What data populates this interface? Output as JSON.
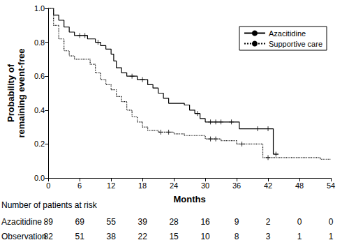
{
  "chart_data": {
    "type": "step",
    "x_label": "Months",
    "y_label": "Probability of\nremaining event-free",
    "xlim": [
      0,
      54
    ],
    "xticks": [
      0,
      6,
      12,
      18,
      24,
      30,
      36,
      42,
      48,
      54
    ],
    "ylim": [
      0,
      1
    ],
    "yticks": [
      {
        "value": 0,
        "label": "0.0"
      },
      0.2,
      0.4,
      0.6,
      0.8,
      {
        "value": 1,
        "label": "1.0"
      }
    ],
    "legend": "upper right",
    "grid": false,
    "series": [
      {
        "name": "Azacitidine",
        "color": "#000000",
        "line_style": "solid",
        "marker": "+",
        "x": [
          0,
          1,
          2,
          3,
          4,
          5,
          7.5,
          9,
          10,
          11,
          12,
          12.5,
          13,
          14,
          15,
          17,
          19,
          20,
          21,
          22,
          23,
          26,
          27,
          28,
          29,
          30,
          36.5,
          43,
          44
        ],
        "values": [
          1.0,
          0.96,
          0.93,
          0.89,
          0.86,
          0.84,
          0.82,
          0.8,
          0.78,
          0.76,
          0.73,
          0.69,
          0.65,
          0.62,
          0.6,
          0.58,
          0.55,
          0.53,
          0.5,
          0.47,
          0.44,
          0.43,
          0.4,
          0.38,
          0.35,
          0.33,
          0.29,
          0.14,
          0.14
        ],
        "censored": {
          "x": [
            6,
            7,
            9.5,
            16,
            18,
            28.5,
            31,
            32,
            33,
            35,
            40,
            42,
            43.5
          ],
          "values": [
            0.84,
            0.84,
            0.8,
            0.6,
            0.58,
            0.38,
            0.33,
            0.33,
            0.33,
            0.33,
            0.29,
            0.29,
            0.14
          ]
        }
      },
      {
        "name": "Supportive care",
        "color": "#000000",
        "line_style": "dotted",
        "marker": "+",
        "x": [
          0,
          1,
          2,
          3,
          4,
          5,
          8,
          9,
          10,
          11,
          12,
          13,
          14,
          15,
          16,
          17,
          18,
          19,
          21,
          24,
          26,
          30,
          33,
          36,
          41,
          52,
          54
        ],
        "values": [
          1.0,
          0.9,
          0.82,
          0.75,
          0.72,
          0.7,
          0.67,
          0.62,
          0.58,
          0.55,
          0.52,
          0.48,
          0.45,
          0.4,
          0.36,
          0.33,
          0.3,
          0.28,
          0.27,
          0.26,
          0.25,
          0.23,
          0.22,
          0.2,
          0.12,
          0.11,
          0.11
        ],
        "censored": {
          "x": [
            21.5,
            23,
            31,
            32,
            37,
            42
          ],
          "values": [
            0.27,
            0.27,
            0.23,
            0.23,
            0.2,
            0.12
          ]
        }
      }
    ],
    "at_risk": {
      "title": "Number of patients at risk",
      "rows": [
        {
          "name": "Azacitidine",
          "values": [
            89,
            69,
            55,
            39,
            28,
            16,
            9,
            2,
            0,
            0
          ]
        },
        {
          "name": "Observation",
          "values": [
            82,
            51,
            38,
            22,
            15,
            10,
            8,
            3,
            1,
            1
          ]
        }
      ]
    }
  }
}
